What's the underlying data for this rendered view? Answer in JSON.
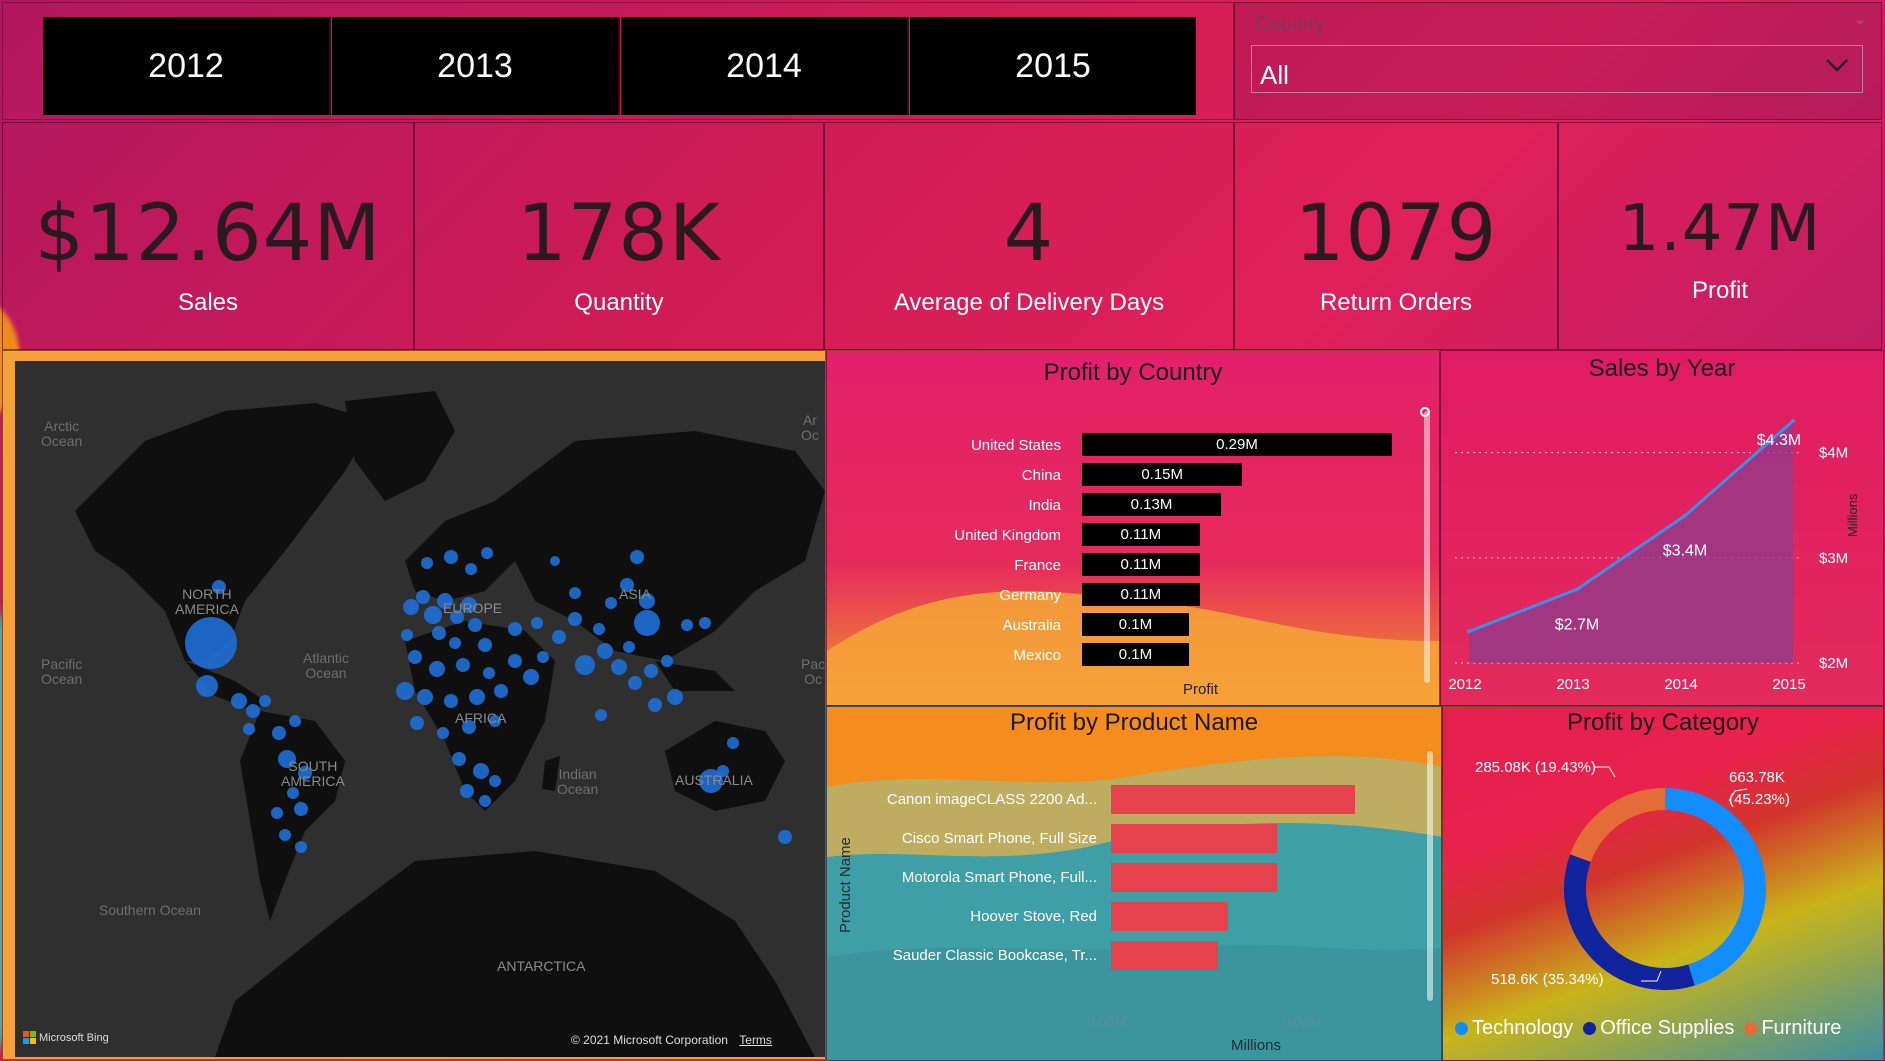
{
  "slicer": {
    "years": [
      "2012",
      "2013",
      "2014",
      "2015"
    ],
    "country_label": "Country",
    "country_value": "All"
  },
  "kpis": [
    {
      "value": "$12.64M",
      "label": "Sales"
    },
    {
      "value": "178K",
      "label": "Quantity"
    },
    {
      "value": "4",
      "label": "Average of Delivery Days"
    },
    {
      "value": "1079",
      "label": "Return Orders"
    },
    {
      "value": "1.47M",
      "label": "Profit"
    }
  ],
  "map": {
    "labels": {
      "arctic": "Arctic\nOcean",
      "north_america": "NORTH\nAMERICA",
      "pacific": "Pacific\nOcean",
      "atlantic": "Atlantic\nOcean",
      "south_america": "SOUTH\nAMERICA",
      "europe": "EUROPE",
      "asia": "ASIA",
      "africa": "AFRICA",
      "indian": "Indian\nOcean",
      "australia": "AUSTRALIA",
      "southern": "Southern Ocean",
      "antarctica": "ANTARCTICA",
      "arctic_right": "Ar\nOc",
      "pacific_right": "Pac\nOc"
    },
    "bing": "Microsoft Bing",
    "copyright": "© 2021 Microsoft Corporation",
    "terms": "Terms",
    "bubble_color": "#1f6fd6"
  },
  "chart_data": [
    {
      "type": "bar",
      "title": "Profit by Country",
      "xlabel": "Profit",
      "categories": [
        "United States",
        "China",
        "India",
        "United Kingdom",
        "France",
        "Germany",
        "Australia",
        "Mexico"
      ],
      "values": [
        0.29,
        0.15,
        0.13,
        0.11,
        0.11,
        0.11,
        0.1,
        0.1
      ],
      "data_labels": [
        "0.29M",
        "0.15M",
        "0.13M",
        "0.11M",
        "0.11M",
        "0.11M",
        "0.1M",
        "0.1M"
      ],
      "color": "#000000"
    },
    {
      "type": "area",
      "title": "Sales by Year",
      "ylabel": "Millions",
      "x": [
        "2012",
        "2013",
        "2014",
        "2015"
      ],
      "values": [
        2.3,
        2.7,
        3.4,
        4.3
      ],
      "data_labels": [
        "",
        "$2.7M",
        "$3.4M",
        "$4.3M"
      ],
      "y_ticks": [
        "$2M",
        "$3M",
        "$4M"
      ],
      "ylim": [
        2,
        4.3
      ],
      "color": "#3d8fe8"
    },
    {
      "type": "bar",
      "title": "Profit by Product Name",
      "ylabel": "Product Name",
      "xlabel": "Millions",
      "categories": [
        "Canon imageCLASS 2200 Ad...",
        "Cisco Smart Phone, Full Size",
        "Motorola Smart Phone, Full...",
        "Hoover Stove, Red",
        "Sauder Classic Bookcase, Tr..."
      ],
      "values": [
        0.025,
        0.017,
        0.017,
        0.012,
        0.011
      ],
      "x_ticks": [
        "0.00M",
        "0.02M"
      ],
      "color": "#e5424d"
    },
    {
      "type": "pie",
      "title": "Profit by Category",
      "categories": [
        "Technology",
        "Office Supplies",
        "Furniture"
      ],
      "values": [
        663.78,
        518.6,
        285.08
      ],
      "data_labels": [
        "663.78K\n(45.23%)",
        "518.6K (35.34%)",
        "285.08K (19.43%)"
      ],
      "colors": [
        "#118dff",
        "#12239e",
        "#e66c37"
      ]
    }
  ]
}
